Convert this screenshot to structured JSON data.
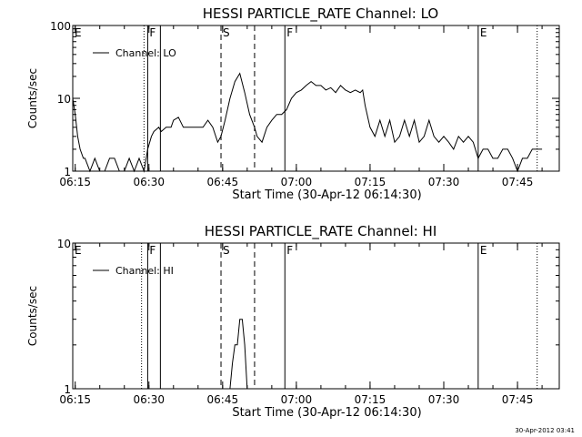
{
  "chart_data": [
    {
      "type": "line",
      "title": "HESSI PARTICLE_RATE Channel: LO",
      "xlabel": "Start Time (30-Apr-12 06:14:30)",
      "ylabel": "Counts/sec",
      "y_scale": "log",
      "ylim": [
        1,
        100
      ],
      "y_ticks": [
        "1",
        "10",
        "100"
      ],
      "xlim": [
        "06:14:30",
        "07:53:30"
      ],
      "x_ticks": [
        "06:15",
        "06:30",
        "06:45",
        "07:00",
        "07:15",
        "07:30",
        "07:45"
      ],
      "legend": {
        "placement": "top-left",
        "entries": [
          "Channel: LO"
        ]
      },
      "markers": [
        {
          "label": "E",
          "time": "06:14:30",
          "style": "solid"
        },
        {
          "label": "",
          "time": "06:29:00",
          "style": "dotted"
        },
        {
          "label": "F",
          "time": "06:29:45",
          "style": "solid"
        },
        {
          "label": "",
          "time": "06:32:20",
          "style": "solid"
        },
        {
          "label": "S",
          "time": "06:44:40",
          "style": "dashed"
        },
        {
          "label": "",
          "time": "06:51:30",
          "style": "dashed"
        },
        {
          "label": "F",
          "time": "06:57:40",
          "style": "solid"
        },
        {
          "label": "E",
          "time": "07:37:00",
          "style": "solid"
        },
        {
          "label": "",
          "time": "07:49:00",
          "style": "dotted"
        }
      ],
      "series": [
        {
          "x": [
            "06:14:30",
            "06:15:00",
            "06:15:30",
            "06:16:00",
            "06:16:40",
            "06:17:00",
            "06:18:00",
            "06:19:00",
            "06:20:00",
            "06:21:00",
            "06:22:00",
            "06:23:00",
            "06:24:00",
            "06:25:00",
            "06:26:00",
            "06:27:00",
            "06:28:00",
            "06:29:00",
            "06:29:45",
            "06:30:30",
            "06:31:00",
            "06:32:00",
            "06:32:30",
            "06:33:30",
            "06:34:30",
            "06:35:00",
            "06:36:00",
            "06:37:00",
            "06:38:00",
            "06:39:00",
            "06:40:00",
            "06:41:00",
            "06:42:00",
            "06:43:00",
            "06:44:00",
            "06:44:40",
            "06:45:30",
            "06:46:30",
            "06:47:30",
            "06:48:30",
            "06:49:30",
            "06:50:30",
            "06:51:30",
            "06:52:00",
            "06:53:00",
            "06:54:00",
            "06:55:00",
            "06:56:00",
            "06:57:00",
            "06:58:00",
            "06:59:00",
            "07:00:00",
            "07:01:00",
            "07:02:00",
            "07:03:00",
            "07:04:00",
            "07:05:00",
            "07:06:00",
            "07:07:00",
            "07:08:00",
            "07:09:00",
            "07:10:00",
            "07:11:00",
            "07:12:00",
            "07:13:00",
            "07:13:30",
            "07:14:00",
            "07:15:00",
            "07:16:00",
            "07:17:00",
            "07:18:00",
            "07:19:00",
            "07:20:00",
            "07:21:00",
            "07:22:00",
            "07:23:00",
            "07:24:00",
            "07:25:00",
            "07:26:00",
            "07:27:00",
            "07:28:00",
            "07:29:00",
            "07:30:00",
            "07:31:00",
            "07:32:00",
            "07:33:00",
            "07:34:00",
            "07:35:00",
            "07:36:00",
            "07:37:00",
            "07:38:00",
            "07:39:00",
            "07:40:00",
            "07:41:00",
            "07:42:00",
            "07:43:00",
            "07:44:00",
            "07:45:00",
            "07:46:00",
            "07:47:00",
            "07:48:00",
            "07:49:00",
            "07:50:00"
          ],
          "y": [
            10,
            6,
            3,
            2,
            1.5,
            1.5,
            1,
            1.5,
            1,
            1,
            1.5,
            1.5,
            1,
            1,
            1.5,
            1,
            1.5,
            1,
            2,
            3,
            3.5,
            4,
            3.5,
            4,
            4,
            5,
            5.5,
            4,
            4,
            4,
            4,
            4,
            5,
            4,
            2.5,
            3,
            5,
            10,
            17,
            22,
            12,
            6,
            4,
            3,
            2.5,
            4,
            5,
            6,
            6,
            7,
            10,
            12,
            13,
            15,
            17,
            15,
            15,
            13,
            14,
            12,
            15,
            13,
            12,
            13,
            12,
            13,
            8,
            4,
            3,
            5,
            3,
            5,
            2.5,
            3,
            5,
            3,
            5,
            2.5,
            3,
            5,
            3,
            2.5,
            3,
            2.5,
            2,
            3,
            2.5,
            3,
            2.5,
            1.5,
            2,
            2,
            1.5,
            1.5,
            2,
            2,
            1.5,
            1,
            1.5,
            1.5,
            2,
            2,
            2
          ]
        }
      ]
    },
    {
      "type": "line",
      "title": "HESSI PARTICLE_RATE Channel: HI",
      "xlabel": "Start Time (30-Apr-12 06:14:30)",
      "ylabel": "Counts/sec",
      "y_scale": "log",
      "ylim": [
        1,
        10
      ],
      "y_ticks": [
        "1",
        "10"
      ],
      "xlim": [
        "06:14:30",
        "07:53:30"
      ],
      "x_ticks": [
        "06:15",
        "06:30",
        "06:45",
        "07:00",
        "07:15",
        "07:30",
        "07:45"
      ],
      "legend": {
        "placement": "top-left",
        "entries": [
          "Channel: HI"
        ]
      },
      "markers": [
        {
          "label": "E",
          "time": "06:14:30",
          "style": "solid"
        },
        {
          "label": "",
          "time": "06:28:30",
          "style": "dotted"
        },
        {
          "label": "F",
          "time": "06:29:45",
          "style": "solid"
        },
        {
          "label": "",
          "time": "06:32:20",
          "style": "solid"
        },
        {
          "label": "S",
          "time": "06:44:40",
          "style": "dashed"
        },
        {
          "label": "",
          "time": "06:51:30",
          "style": "dashed"
        },
        {
          "label": "F",
          "time": "06:57:40",
          "style": "solid"
        },
        {
          "label": "E",
          "time": "07:37:00",
          "style": "solid"
        },
        {
          "label": "",
          "time": "07:49:00",
          "style": "dotted"
        }
      ],
      "series": [
        {
          "x": [
            "06:46:30",
            "06:47:00",
            "06:47:30",
            "06:48:00",
            "06:48:30",
            "06:49:00",
            "06:49:30",
            "06:50:00"
          ],
          "y": [
            1,
            1.5,
            2,
            2,
            3,
            3,
            2,
            1
          ]
        }
      ]
    }
  ],
  "footer": {
    "timestamp": "30-Apr-2012 03:41"
  }
}
